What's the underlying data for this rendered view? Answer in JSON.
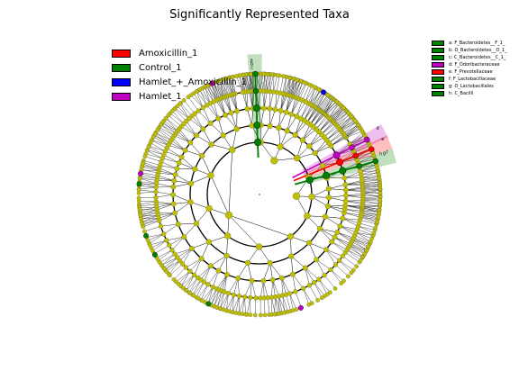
{
  "chart_data": {
    "type": "cladogram",
    "title": "Significantly Represented Taxa",
    "colors": {
      "Amoxicillin_1": "#ff0000",
      "Control_1": "#008000",
      "Hamlet_+_Amoxicillin_1": "#0000ff",
      "Hamlet_1": "#c000c0",
      "nonsignificant": "#c0c000"
    },
    "classes": [
      {
        "name": "Amoxicillin_1",
        "color": "#ff0000"
      },
      {
        "name": "Control_1",
        "color": "#008000"
      },
      {
        "name": "Hamlet_+_Amoxicillin_1",
        "color": "#0000ff"
      },
      {
        "name": "Hamlet_1",
        "color": "#c000c0"
      }
    ],
    "clades": [
      {
        "letter": "a",
        "label": "a: F_Bacteroidetes__F_1_",
        "class": "Control_1",
        "color": "#008000",
        "angle_deg": 92,
        "level": 4
      },
      {
        "letter": "b",
        "label": "b: O_Bacteroidetes__O_1_",
        "class": "Control_1",
        "color": "#008000",
        "angle_deg": 92,
        "level": 3
      },
      {
        "letter": "c",
        "label": "c: C_Bacteroidetes__C_1_",
        "class": "Control_1",
        "color": "#008000",
        "angle_deg": 92,
        "level": 2
      },
      {
        "letter": "d",
        "label": "d: F_Odoribacteraceae",
        "class": "Hamlet_1",
        "color": "#c000c0",
        "angle_deg": 27,
        "level": 4
      },
      {
        "letter": "e",
        "label": "e: F_Prevotellaceae",
        "class": "Amoxicillin_1",
        "color": "#ff0000",
        "angle_deg": 22,
        "level": 4
      },
      {
        "letter": "f",
        "label": "f: F_Lactobacillaceae",
        "class": "Control_1",
        "color": "#008000",
        "angle_deg": 16,
        "level": 4
      },
      {
        "letter": "g",
        "label": "g: O_Lactobacillales",
        "class": "Control_1",
        "color": "#008000",
        "angle_deg": 16,
        "level": 3
      },
      {
        "letter": "h",
        "label": "h: C_Bacilli",
        "class": "Control_1",
        "color": "#008000",
        "angle_deg": 16,
        "level": 2
      }
    ]
  }
}
